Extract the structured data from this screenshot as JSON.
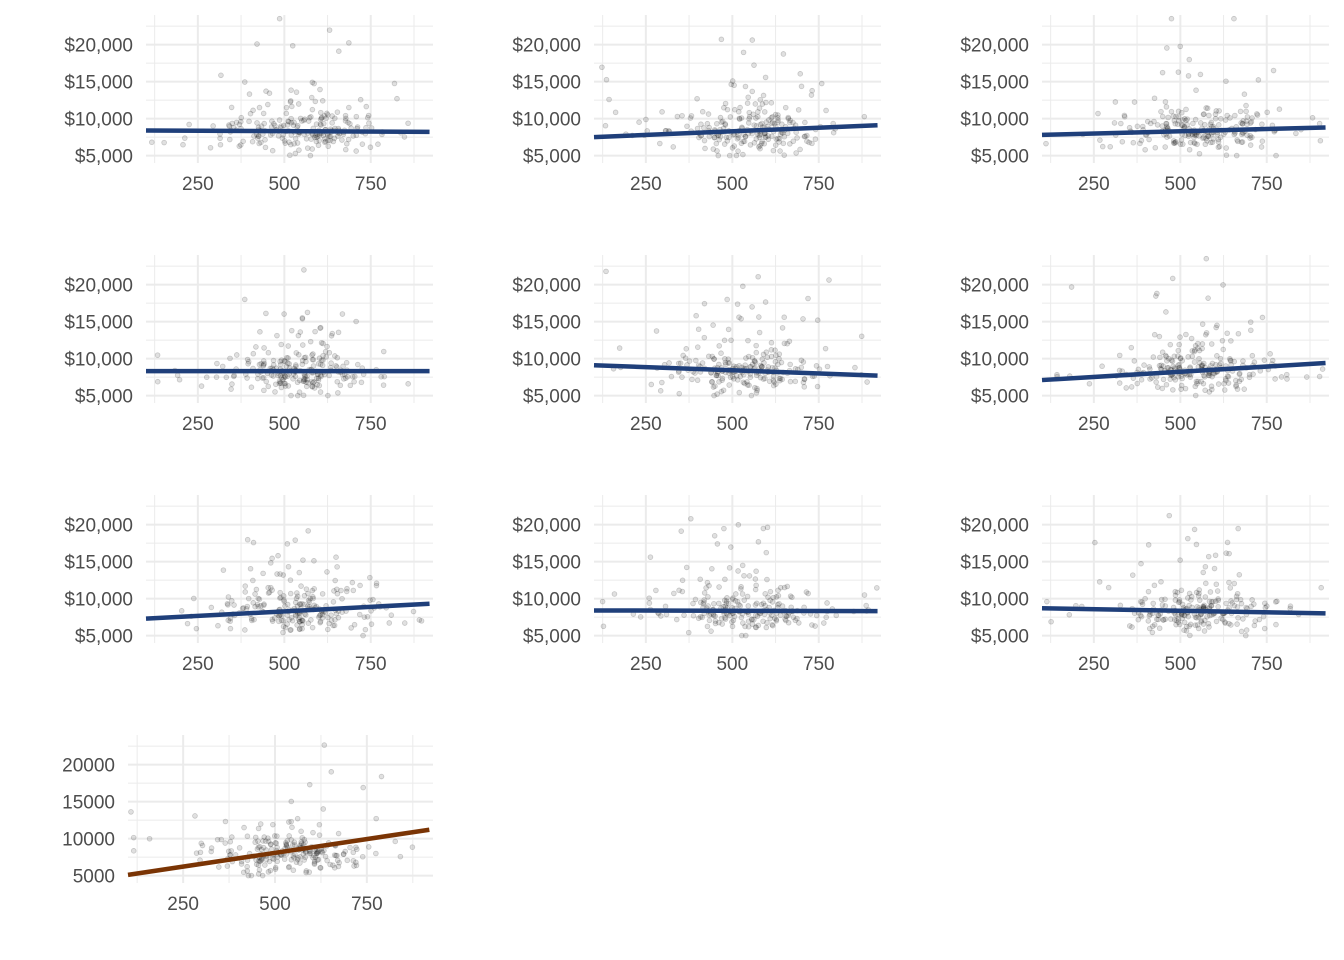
{
  "colors": {
    "grid": "#ebebeb",
    "points": "#000000",
    "null_line": "#1f3f7a",
    "real_line": "#7a3404"
  },
  "chart_data": [
    {
      "type": "scatter",
      "panel": "null",
      "xlim": [
        100,
        930
      ],
      "ylim": [
        4000,
        24000
      ],
      "x_ticks": [
        250,
        500,
        750
      ],
      "y_ticks": [
        5000,
        10000,
        15000,
        20000
      ],
      "x_tick_labels": [
        "250",
        "500",
        "750"
      ],
      "y_tick_labels": [
        "$5,000",
        "$10,000",
        "$15,000",
        "$20,000"
      ],
      "trend_line": {
        "x": [
          100,
          920
        ],
        "y": [
          8400,
          8200
        ]
      }
    },
    {
      "type": "scatter",
      "panel": "null",
      "xlim": [
        100,
        930
      ],
      "ylim": [
        4000,
        24000
      ],
      "x_ticks": [
        250,
        500,
        750
      ],
      "y_ticks": [
        5000,
        10000,
        15000,
        20000
      ],
      "x_tick_labels": [
        "250",
        "500",
        "750"
      ],
      "y_tick_labels": [
        "$5,000",
        "$10,000",
        "$15,000",
        "$20,000"
      ],
      "trend_line": {
        "x": [
          100,
          920
        ],
        "y": [
          7500,
          9100
        ]
      }
    },
    {
      "type": "scatter",
      "panel": "null",
      "xlim": [
        100,
        930
      ],
      "ylim": [
        4000,
        24000
      ],
      "x_ticks": [
        250,
        500,
        750
      ],
      "y_ticks": [
        5000,
        10000,
        15000,
        20000
      ],
      "x_tick_labels": [
        "250",
        "500",
        "750"
      ],
      "y_tick_labels": [
        "$5,000",
        "$10,000",
        "$15,000",
        "$20,000"
      ],
      "trend_line": {
        "x": [
          100,
          920
        ],
        "y": [
          7800,
          8800
        ]
      }
    },
    {
      "type": "scatter",
      "panel": "null",
      "xlim": [
        100,
        930
      ],
      "ylim": [
        4000,
        24000
      ],
      "x_ticks": [
        250,
        500,
        750
      ],
      "y_ticks": [
        5000,
        10000,
        15000,
        20000
      ],
      "x_tick_labels": [
        "250",
        "500",
        "750"
      ],
      "y_tick_labels": [
        "$5,000",
        "$10,000",
        "$15,000",
        "$20,000"
      ],
      "trend_line": {
        "x": [
          100,
          920
        ],
        "y": [
          8300,
          8300
        ]
      }
    },
    {
      "type": "scatter",
      "panel": "null",
      "xlim": [
        100,
        930
      ],
      "ylim": [
        4000,
        24000
      ],
      "x_ticks": [
        250,
        500,
        750
      ],
      "y_ticks": [
        5000,
        10000,
        15000,
        20000
      ],
      "x_tick_labels": [
        "250",
        "500",
        "750"
      ],
      "y_tick_labels": [
        "$5,000",
        "$10,000",
        "$15,000",
        "$20,000"
      ],
      "trend_line": {
        "x": [
          100,
          920
        ],
        "y": [
          9100,
          7700
        ]
      }
    },
    {
      "type": "scatter",
      "panel": "null",
      "xlim": [
        100,
        930
      ],
      "ylim": [
        4000,
        24000
      ],
      "x_ticks": [
        250,
        500,
        750
      ],
      "y_ticks": [
        5000,
        10000,
        15000,
        20000
      ],
      "x_tick_labels": [
        "250",
        "500",
        "750"
      ],
      "y_tick_labels": [
        "$5,000",
        "$10,000",
        "$15,000",
        "$20,000"
      ],
      "trend_line": {
        "x": [
          100,
          920
        ],
        "y": [
          7100,
          9400
        ]
      }
    },
    {
      "type": "scatter",
      "panel": "null",
      "xlim": [
        100,
        930
      ],
      "ylim": [
        4000,
        24000
      ],
      "x_ticks": [
        250,
        500,
        750
      ],
      "y_ticks": [
        5000,
        10000,
        15000,
        20000
      ],
      "x_tick_labels": [
        "250",
        "500",
        "750"
      ],
      "y_tick_labels": [
        "$5,000",
        "$10,000",
        "$15,000",
        "$20,000"
      ],
      "trend_line": {
        "x": [
          100,
          920
        ],
        "y": [
          7300,
          9300
        ]
      }
    },
    {
      "type": "scatter",
      "panel": "null",
      "xlim": [
        100,
        930
      ],
      "ylim": [
        4000,
        24000
      ],
      "x_ticks": [
        250,
        500,
        750
      ],
      "y_ticks": [
        5000,
        10000,
        15000,
        20000
      ],
      "x_tick_labels": [
        "250",
        "500",
        "750"
      ],
      "y_tick_labels": [
        "$5,000",
        "$10,000",
        "$15,000",
        "$20,000"
      ],
      "trend_line": {
        "x": [
          100,
          920
        ],
        "y": [
          8400,
          8300
        ]
      }
    },
    {
      "type": "scatter",
      "panel": "null",
      "xlim": [
        100,
        930
      ],
      "ylim": [
        4000,
        24000
      ],
      "x_ticks": [
        250,
        500,
        750
      ],
      "y_ticks": [
        5000,
        10000,
        15000,
        20000
      ],
      "x_tick_labels": [
        "250",
        "500",
        "750"
      ],
      "y_tick_labels": [
        "$5,000",
        "$10,000",
        "$15,000",
        "$20,000"
      ],
      "trend_line": {
        "x": [
          100,
          920
        ],
        "y": [
          8700,
          8000
        ]
      }
    },
    {
      "type": "scatter",
      "panel": "real",
      "xlim": [
        100,
        930
      ],
      "ylim": [
        4000,
        24000
      ],
      "x_ticks": [
        250,
        500,
        750
      ],
      "y_ticks": [
        5000,
        10000,
        15000,
        20000
      ],
      "x_tick_labels": [
        "250",
        "500",
        "750"
      ],
      "y_tick_labels": [
        "5000",
        "10000",
        "15000",
        "20000"
      ],
      "trend_line": {
        "x": [
          100,
          920
        ],
        "y": [
          5100,
          11200
        ]
      }
    }
  ]
}
